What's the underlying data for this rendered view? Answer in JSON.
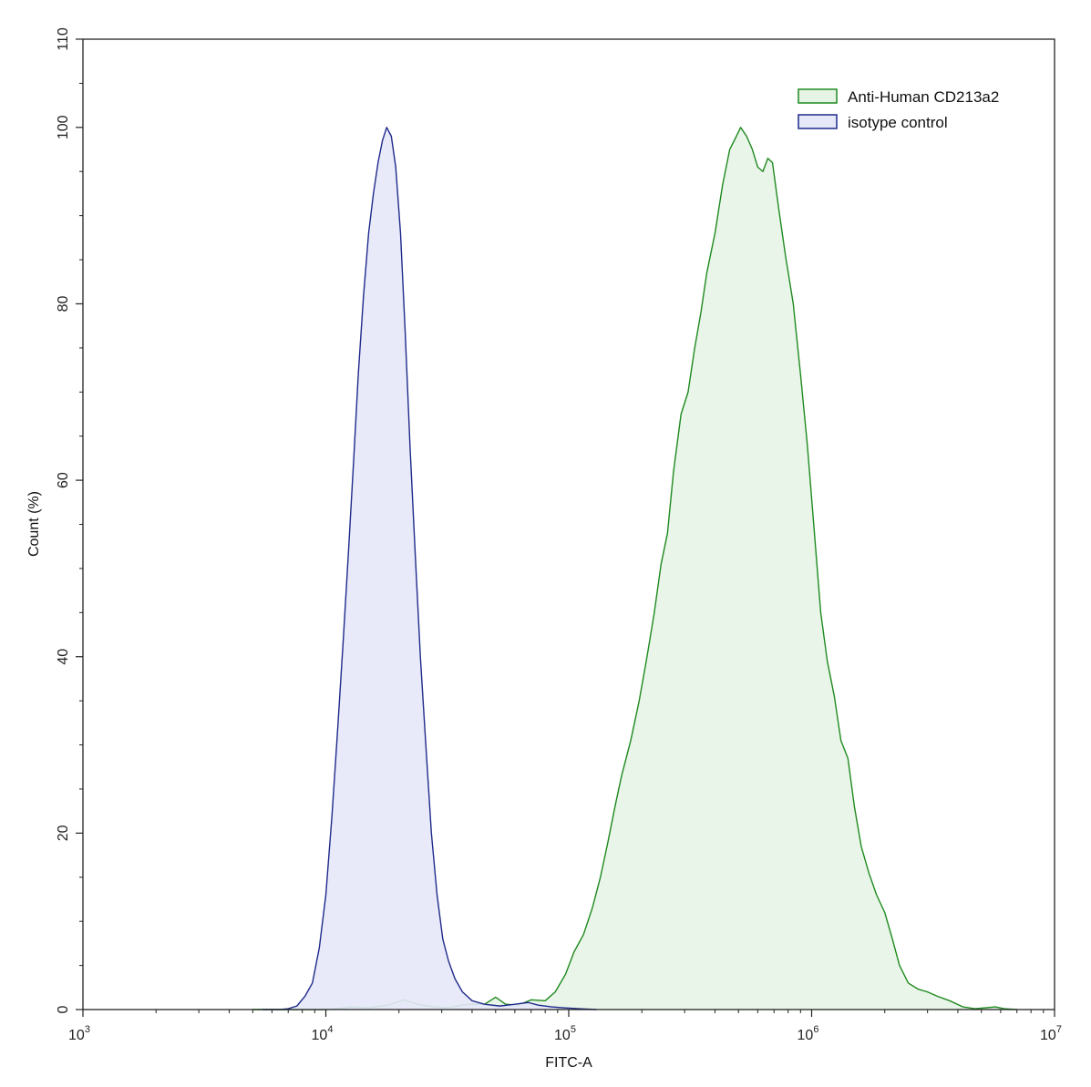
{
  "chart_data": {
    "type": "area",
    "title": "",
    "xlabel": "FITC-A",
    "ylabel": "Count  (%)",
    "x_scale": "log10",
    "xlim": [
      1000,
      10000000
    ],
    "ylim": [
      0,
      110
    ],
    "x_ticks": [
      {
        "value": 1000,
        "base": "10",
        "exp": "3"
      },
      {
        "value": 10000,
        "base": "10",
        "exp": "4"
      },
      {
        "value": 100000,
        "base": "10",
        "exp": "5"
      },
      {
        "value": 1000000,
        "base": "10",
        "exp": "6"
      },
      {
        "value": 10000000,
        "base": "10",
        "exp": "7"
      }
    ],
    "y_ticks": [
      "0",
      "20",
      "40",
      "60",
      "80",
      "100",
      "110"
    ],
    "grid": false,
    "legend_position": "top-right",
    "series": [
      {
        "name": "Anti-Human CD213a2",
        "line_color": "#1f8a1f",
        "fill_color": "#e6f4e6",
        "points": [
          [
            5000,
            0
          ],
          [
            10000,
            0
          ],
          [
            13000,
            0.3
          ],
          [
            15000,
            0.2
          ],
          [
            18000,
            0.5
          ],
          [
            21000,
            1.1
          ],
          [
            24000,
            0.6
          ],
          [
            28000,
            0.3
          ],
          [
            32000,
            0.2
          ],
          [
            38000,
            0.6
          ],
          [
            45000,
            0.6
          ],
          [
            50000,
            1.4
          ],
          [
            55000,
            0.6
          ],
          [
            62000,
            0.5
          ],
          [
            70000,
            1.1
          ],
          [
            80000,
            1.0
          ],
          [
            88000,
            2.0
          ],
          [
            97000,
            4.0
          ],
          [
            105000,
            6.5
          ],
          [
            115000,
            8.5
          ],
          [
            125000,
            11.5
          ],
          [
            135000,
            15.0
          ],
          [
            145000,
            19.0
          ],
          [
            155000,
            23.0
          ],
          [
            165000,
            26.5
          ],
          [
            180000,
            30.5
          ],
          [
            195000,
            35.0
          ],
          [
            210000,
            40.0
          ],
          [
            225000,
            45.0
          ],
          [
            240000,
            50.5
          ],
          [
            255000,
            54.0
          ],
          [
            270000,
            61.0
          ],
          [
            290000,
            67.5
          ],
          [
            310000,
            70.0
          ],
          [
            330000,
            75.0
          ],
          [
            350000,
            79.0
          ],
          [
            370000,
            83.5
          ],
          [
            400000,
            88.0
          ],
          [
            430000,
            93.5
          ],
          [
            460000,
            97.5
          ],
          [
            490000,
            99.0
          ],
          [
            510000,
            100.0
          ],
          [
            540000,
            99.0
          ],
          [
            570000,
            97.5
          ],
          [
            600000,
            95.5
          ],
          [
            630000,
            95.0
          ],
          [
            660000,
            96.5
          ],
          [
            690000,
            96.0
          ],
          [
            730000,
            91.0
          ],
          [
            780000,
            85.5
          ],
          [
            840000,
            80.0
          ],
          [
            900000,
            72.0
          ],
          [
            960000,
            64.0
          ],
          [
            1020000,
            55.0
          ],
          [
            1090000,
            45.0
          ],
          [
            1160000,
            39.5
          ],
          [
            1240000,
            35.5
          ],
          [
            1320000,
            30.5
          ],
          [
            1410000,
            28.5
          ],
          [
            1500000,
            23.0
          ],
          [
            1600000,
            18.5
          ],
          [
            1720000,
            15.5
          ],
          [
            1850000,
            13.0
          ],
          [
            2000000,
            11.0
          ],
          [
            2150000,
            8.0
          ],
          [
            2300000,
            5.0
          ],
          [
            2500000,
            3.0
          ],
          [
            2750000,
            2.3
          ],
          [
            3000000,
            2.0
          ],
          [
            3300000,
            1.5
          ],
          [
            3700000,
            1.0
          ],
          [
            4200000,
            0.3
          ],
          [
            4700000,
            0.1
          ],
          [
            5200000,
            0.2
          ],
          [
            5700000,
            0.3
          ],
          [
            6200000,
            0.1
          ],
          [
            7000000,
            0
          ]
        ]
      },
      {
        "name": "isotype control",
        "line_color": "#1f2a8a",
        "fill_color": "#e6e8f8",
        "points": [
          [
            5500,
            0
          ],
          [
            6500,
            0
          ],
          [
            7000,
            0.1
          ],
          [
            7600,
            0.4
          ],
          [
            8200,
            1.5
          ],
          [
            8800,
            3.0
          ],
          [
            9400,
            7.0
          ],
          [
            10000,
            13.0
          ],
          [
            10600,
            22.0
          ],
          [
            11200,
            32.0
          ],
          [
            11800,
            42.0
          ],
          [
            12400,
            52.0
          ],
          [
            13000,
            62.0
          ],
          [
            13600,
            72.0
          ],
          [
            14300,
            81.0
          ],
          [
            15000,
            88.0
          ],
          [
            15700,
            92.5
          ],
          [
            16400,
            96.0
          ],
          [
            17100,
            98.5
          ],
          [
            17800,
            100.0
          ],
          [
            18600,
            99.0
          ],
          [
            19400,
            95.5
          ],
          [
            20300,
            88.0
          ],
          [
            21200,
            77.0
          ],
          [
            22200,
            64.0
          ],
          [
            23300,
            52.0
          ],
          [
            24500,
            40.0
          ],
          [
            25800,
            30.0
          ],
          [
            27200,
            20.0
          ],
          [
            28700,
            13.0
          ],
          [
            30300,
            8.0
          ],
          [
            32000,
            5.5
          ],
          [
            34000,
            3.5
          ],
          [
            36500,
            2.0
          ],
          [
            40000,
            1.0
          ],
          [
            45000,
            0.6
          ],
          [
            52000,
            0.4
          ],
          [
            60000,
            0.6
          ],
          [
            68000,
            0.8
          ],
          [
            75000,
            0.5
          ],
          [
            85000,
            0.3
          ],
          [
            95000,
            0.2
          ],
          [
            110000,
            0.1
          ],
          [
            130000,
            0
          ]
        ]
      }
    ]
  }
}
